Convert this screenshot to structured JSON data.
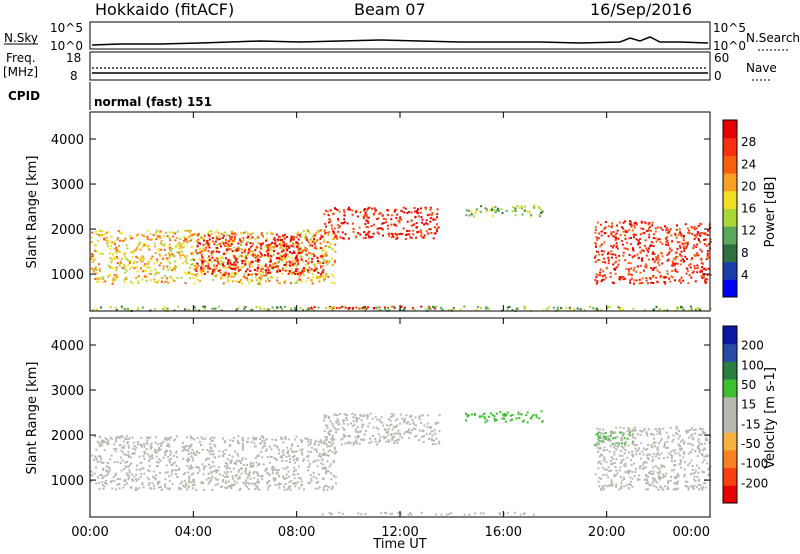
{
  "header": {
    "station": "Hokkaido (fitACF)",
    "beam": "Beam 07",
    "date": "16/Sep/2016"
  },
  "top_panels": {
    "nsky_label": "N.Sky",
    "nsearch_label": "N.Search",
    "noise_ticks_left": [
      "10^5",
      "10^0"
    ],
    "noise_ticks_right": [
      "10^5",
      "10^0"
    ],
    "freq_label_1": "Freq.",
    "freq_label_2": "[MHz]",
    "freq_ticks": [
      "18",
      "8"
    ],
    "nave_label": "Nave",
    "nave_ticks": [
      "60",
      "0"
    ],
    "cpid_label": "CPID",
    "cpid_value": "normal (fast) 151"
  },
  "colors": {
    "power_scale": [
      "#0000ff",
      "#1a3faa",
      "#2e7040",
      "#5aa85a",
      "#a8d838",
      "#f0e020",
      "#f8a020",
      "#f86010",
      "#f83010",
      "#e80000"
    ],
    "velocity_scale": [
      "#e80000",
      "#f84010",
      "#f88020",
      "#f8b040",
      "#b8b8b0",
      "#b8b8b0",
      "#3cc030",
      "#2a8040",
      "#2a4aa8",
      "#0a1aa0"
    ],
    "ground_scatter": "#b8b8b0"
  },
  "chart_data": [
    {
      "type": "heatmap",
      "name": "power-panel",
      "ylabel": "Slant Range [km]",
      "yticks": [
        "4000",
        "3000",
        "2000",
        "1000"
      ],
      "ylim": [
        180,
        4600
      ],
      "colorbar_label": "Power [dB]",
      "colorbar_ticks": [
        "28",
        "24",
        "20",
        "16",
        "12",
        "8",
        "4"
      ],
      "colorbar_range": [
        0,
        30
      ],
      "features": [
        {
          "t_start": 0.0,
          "t_end": 9.5,
          "range_start": 800,
          "range_end": 2000,
          "power": 18
        },
        {
          "t_start": 4.0,
          "t_end": 9.0,
          "range_start": 1000,
          "range_end": 1900,
          "power": 27
        },
        {
          "t_start": 9.0,
          "t_end": 13.5,
          "range_start": 1800,
          "range_end": 2500,
          "power": 27
        },
        {
          "t_start": 8.5,
          "t_end": 13.5,
          "range_start": 250,
          "range_end": 300,
          "power": 28
        },
        {
          "t_start": 14.5,
          "t_end": 17.5,
          "range_start": 2300,
          "range_end": 2550,
          "power": 12
        },
        {
          "t_start": 19.5,
          "t_end": 24.0,
          "range_start": 800,
          "range_end": 2200,
          "power": 26
        },
        {
          "t_start": 0.0,
          "t_end": 24.0,
          "range_start": 200,
          "range_end": 300,
          "power": 12
        }
      ]
    },
    {
      "type": "heatmap",
      "name": "velocity-panel",
      "ylabel": "Slant Range [km]",
      "yticks": [
        "4000",
        "3000",
        "2000",
        "1000"
      ],
      "ylim": [
        180,
        4600
      ],
      "colorbar_label": "Velocity [m s-1]",
      "colorbar_ticks": [
        "200",
        "100",
        "50",
        "15",
        "-15",
        "-50",
        "-100",
        "-200"
      ],
      "colorbar_range": [
        -250,
        250
      ],
      "features": [
        {
          "t_start": 0.0,
          "t_end": 9.5,
          "range_start": 800,
          "range_end": 2000,
          "velocity": 0
        },
        {
          "t_start": 9.0,
          "t_end": 13.5,
          "range_start": 1800,
          "range_end": 2500,
          "velocity": 0
        },
        {
          "t_start": 14.5,
          "t_end": 17.5,
          "range_start": 2300,
          "range_end": 2550,
          "velocity": 60
        },
        {
          "t_start": 19.5,
          "t_end": 21.0,
          "range_start": 1800,
          "range_end": 2100,
          "velocity": 60
        },
        {
          "t_start": 19.5,
          "t_end": 24.0,
          "range_start": 800,
          "range_end": 2200,
          "velocity": 0
        },
        {
          "t_start": 8.5,
          "t_end": 18.0,
          "range_start": 250,
          "range_end": 300,
          "velocity": 40
        }
      ]
    }
  ],
  "x_axis": {
    "ticks": [
      "00:00",
      "04:00",
      "08:00",
      "12:00",
      "16:00",
      "20:00",
      "00:00"
    ],
    "label": "Time UT",
    "range_hours": [
      0,
      24
    ]
  }
}
